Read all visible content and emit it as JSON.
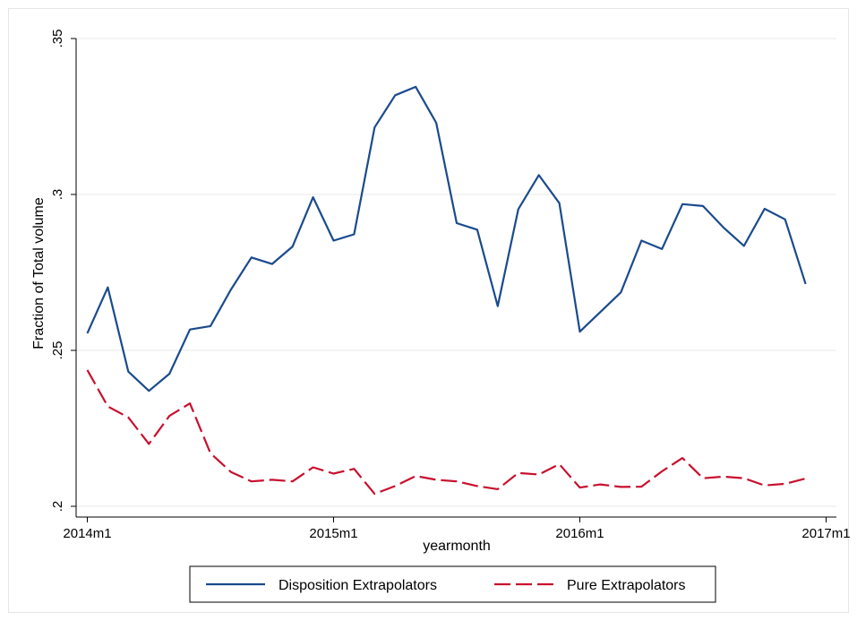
{
  "chart_data": {
    "type": "line",
    "xlabel": "yearmonth",
    "ylabel": "Fraction of Total volume",
    "xlim": [
      "2014m1",
      "2017m1"
    ],
    "ylim": [
      0.2,
      0.35
    ],
    "x_ticks": [
      "2014m1",
      "2015m1",
      "2016m1",
      "2017m1"
    ],
    "y_ticks": [
      {
        "value": 0.2,
        "label": ".2"
      },
      {
        "value": 0.25,
        "label": ".25"
      },
      {
        "value": 0.3,
        "label": ".3"
      },
      {
        "value": 0.35,
        "label": ".35"
      }
    ],
    "grid": true,
    "legend_position": "bottom",
    "x": [
      "2014m1",
      "2014m2",
      "2014m3",
      "2014m4",
      "2014m5",
      "2014m6",
      "2014m7",
      "2014m8",
      "2014m9",
      "2014m10",
      "2014m11",
      "2014m12",
      "2015m1",
      "2015m2",
      "2015m3",
      "2015m4",
      "2015m5",
      "2015m6",
      "2015m7",
      "2015m8",
      "2015m9",
      "2015m10",
      "2015m11",
      "2015m12",
      "2016m1",
      "2016m2",
      "2016m3",
      "2016m4",
      "2016m5",
      "2016m6",
      "2016m7",
      "2016m8",
      "2016m9",
      "2016m10",
      "2016m11",
      "2016m12"
    ],
    "series": [
      {
        "name": "Disposition Extrapolators",
        "color": "#1a4b8c",
        "dash": "solid",
        "values": [
          0.2555,
          0.2702,
          0.2432,
          0.237,
          0.2425,
          0.2567,
          0.2578,
          0.2695,
          0.2798,
          0.2777,
          0.2833,
          0.2991,
          0.2852,
          0.2872,
          0.3215,
          0.3318,
          0.3345,
          0.323,
          0.2908,
          0.2887,
          0.2642,
          0.2953,
          0.3062,
          0.2972,
          0.256,
          0.2623,
          0.2686,
          0.2852,
          0.2825,
          0.2969,
          0.2963,
          0.2894,
          0.2835,
          0.2954,
          0.292,
          0.2713
        ]
      },
      {
        "name": "Pure Extrapolators",
        "color": "#c8102e",
        "dash": "dashed",
        "values": [
          0.2437,
          0.232,
          0.2285,
          0.22,
          0.229,
          0.233,
          0.217,
          0.211,
          0.208,
          0.2085,
          0.208,
          0.2125,
          0.2105,
          0.212,
          0.204,
          0.2065,
          0.2097,
          0.2085,
          0.208,
          0.2065,
          0.2055,
          0.2107,
          0.2102,
          0.2135,
          0.206,
          0.207,
          0.2062,
          0.2063,
          0.2112,
          0.2155,
          0.209,
          0.2095,
          0.209,
          0.2067,
          0.2072,
          0.2089
        ]
      }
    ]
  }
}
